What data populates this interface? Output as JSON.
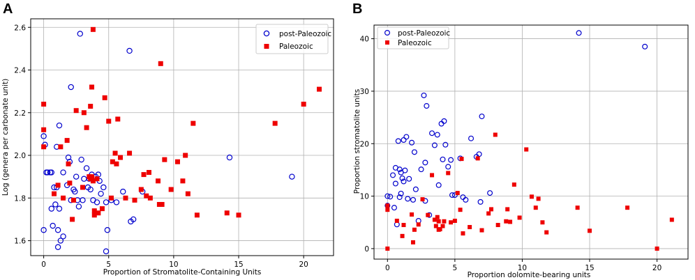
{
  "chart_data": [
    {
      "type": "scatter",
      "panel_label": "A",
      "title": "",
      "xlabel": "Proportion of Stromatolite-Containing Units",
      "ylabel": "Log (genera per carbonate unit)",
      "xlim": [
        -1,
        22.3
      ],
      "ylim": [
        1.53,
        2.64
      ],
      "xticks": [
        0,
        5,
        10,
        15,
        20
      ],
      "yticks": [
        1.6,
        1.8,
        2.0,
        2.2,
        2.4,
        2.6
      ],
      "xtick_labels": [
        "0",
        "5",
        "10",
        "15",
        "20"
      ],
      "ytick_labels": [
        "1.6",
        "1.8",
        "2.0",
        "2.2",
        "2.4",
        "2.6"
      ],
      "grid": true,
      "legend_position": "top-right",
      "series": [
        {
          "name": "post-Paleozoic",
          "marker": "open-circle",
          "color": "#0000cc",
          "points": [
            [
              0,
              1.65
            ],
            [
              0,
              2.09
            ],
            [
              0.1,
              2.05
            ],
            [
              0.2,
              1.92
            ],
            [
              0.3,
              1.92
            ],
            [
              0.5,
              1.92
            ],
            [
              0.6,
              1.92
            ],
            [
              0.6,
              1.75
            ],
            [
              0.7,
              1.67
            ],
            [
              0.8,
              1.85
            ],
            [
              0.9,
              1.77
            ],
            [
              1,
              2.04
            ],
            [
              1,
              1.85
            ],
            [
              1.1,
              1.65
            ],
            [
              1.1,
              1.57
            ],
            [
              1.2,
              2.14
            ],
            [
              1.2,
              1.75
            ],
            [
              1.3,
              1.6
            ],
            [
              1.5,
              1.92
            ],
            [
              1.5,
              1.62
            ],
            [
              1.8,
              1.86
            ],
            [
              1.9,
              1.99
            ],
            [
              2,
              1.97
            ],
            [
              2.1,
              1.79
            ],
            [
              2.1,
              2.32
            ],
            [
              2.3,
              1.84
            ],
            [
              2.4,
              1.83
            ],
            [
              2.5,
              1.9
            ],
            [
              2.6,
              1.79
            ],
            [
              2.7,
              1.76
            ],
            [
              2.8,
              2.57
            ],
            [
              2.9,
              1.98
            ],
            [
              3,
              1.79
            ],
            [
              3.1,
              1.89
            ],
            [
              3.3,
              1.94
            ],
            [
              3.4,
              1.85
            ],
            [
              3.5,
              1.89
            ],
            [
              3.6,
              1.84
            ],
            [
              3.7,
              1.91
            ],
            [
              3.8,
              1.79
            ],
            [
              4,
              1.9
            ],
            [
              4.1,
              1.78
            ],
            [
              4.2,
              1.91
            ],
            [
              4.3,
              1.88
            ],
            [
              4.4,
              1.82
            ],
            [
              4.6,
              1.85
            ],
            [
              4.8,
              1.78
            ],
            [
              4.8,
              1.55
            ],
            [
              4.9,
              1.65
            ],
            [
              5.2,
              1.79
            ],
            [
              5.6,
              1.78
            ],
            [
              6.1,
              1.83
            ],
            [
              6.6,
              2.49
            ],
            [
              6.7,
              1.69
            ],
            [
              6.9,
              1.7
            ],
            [
              7.6,
              1.83
            ],
            [
              14.3,
              1.99
            ],
            [
              19.1,
              1.9
            ]
          ]
        },
        {
          "name": "Paleozoic",
          "marker": "filled-square",
          "color": "#ee0000",
          "points": [
            [
              0,
              2.24
            ],
            [
              0,
              2.12
            ],
            [
              0,
              2.04
            ],
            [
              0.8,
              1.82
            ],
            [
              1.1,
              1.86
            ],
            [
              1.3,
              2.04
            ],
            [
              1.5,
              1.8
            ],
            [
              1.8,
              2.07
            ],
            [
              1.9,
              1.96
            ],
            [
              2,
              1.87
            ],
            [
              2.2,
              1.7
            ],
            [
              2.3,
              1.79
            ],
            [
              2.5,
              2.21
            ],
            [
              3,
              1.85
            ],
            [
              3.1,
              2.2
            ],
            [
              3.3,
              2.13
            ],
            [
              3.5,
              1.9
            ],
            [
              3.6,
              2.23
            ],
            [
              3.6,
              1.89
            ],
            [
              3.7,
              2.32
            ],
            [
              3.7,
              1.9
            ],
            [
              3.8,
              2.59
            ],
            [
              3.8,
              1.88
            ],
            [
              3.9,
              1.74
            ],
            [
              3.9,
              1.72
            ],
            [
              4.1,
              1.89
            ],
            [
              4.2,
              1.73
            ],
            [
              4.5,
              1.75
            ],
            [
              4.7,
              2.27
            ],
            [
              5,
              2.16
            ],
            [
              5.2,
              1.8
            ],
            [
              5.3,
              1.97
            ],
            [
              5.5,
              2.01
            ],
            [
              5.6,
              1.96
            ],
            [
              5.7,
              2.17
            ],
            [
              5.9,
              1.99
            ],
            [
              6.3,
              1.8
            ],
            [
              6.6,
              2.01
            ],
            [
              7,
              1.79
            ],
            [
              7.5,
              1.84
            ],
            [
              7.7,
              1.91
            ],
            [
              7.9,
              1.81
            ],
            [
              8.1,
              1.92
            ],
            [
              8.2,
              1.8
            ],
            [
              8.8,
              1.88
            ],
            [
              8.9,
              1.77
            ],
            [
              9,
              2.43
            ],
            [
              9.1,
              1.77
            ],
            [
              9.3,
              1.98
            ],
            [
              9.8,
              1.84
            ],
            [
              10.3,
              1.97
            ],
            [
              10.7,
              1.88
            ],
            [
              10.9,
              2
            ],
            [
              11.1,
              1.82
            ],
            [
              11.5,
              2.15
            ],
            [
              11.8,
              1.72
            ],
            [
              14.1,
              1.73
            ],
            [
              15,
              1.72
            ],
            [
              17.8,
              2.15
            ],
            [
              20,
              2.24
            ],
            [
              21.2,
              2.31
            ]
          ]
        }
      ]
    },
    {
      "type": "scatter",
      "panel_label": "B",
      "title": "",
      "xlabel": "Proportion dolomite-bearing units",
      "ylabel": "Proportion stromatolite units",
      "xlim": [
        -1,
        22.3
      ],
      "ylim": [
        -2,
        42.6
      ],
      "xticks": [
        0,
        5,
        10,
        15,
        20
      ],
      "yticks": [
        0,
        10,
        20,
        30,
        40
      ],
      "xtick_labels": [
        "0",
        "5",
        "10",
        "15",
        "20"
      ],
      "ytick_labels": [
        "0",
        "10",
        "20",
        "30",
        "40"
      ],
      "grid": true,
      "legend_position": "top-left",
      "series": [
        {
          "name": "post-Paleozoic",
          "marker": "open-circle",
          "color": "#0000cc",
          "points": [
            [
              0,
              10
            ],
            [
              0,
              8.2
            ],
            [
              0.2,
              9.9
            ],
            [
              0.4,
              14
            ],
            [
              0.5,
              7.8
            ],
            [
              0.6,
              12.4
            ],
            [
              0.6,
              15.4
            ],
            [
              0.7,
              4.6
            ],
            [
              0.8,
              20.5
            ],
            [
              0.9,
              15.1
            ],
            [
              0.9,
              9.8
            ],
            [
              1,
              14.5
            ],
            [
              1,
              10.5
            ],
            [
              1.1,
              13.4
            ],
            [
              1.2,
              20.7
            ],
            [
              1.2,
              12.8
            ],
            [
              1.3,
              14.9
            ],
            [
              1.4,
              21.3
            ],
            [
              1.5,
              9.5
            ],
            [
              1.6,
              13.3
            ],
            [
              1.8,
              20.2
            ],
            [
              1.9,
              9.3
            ],
            [
              2,
              18.4
            ],
            [
              2.1,
              11.3
            ],
            [
              2.3,
              5.3
            ],
            [
              2.5,
              15.1
            ],
            [
              2.7,
              29.2
            ],
            [
              2.8,
              16.4
            ],
            [
              2.8,
              9.1
            ],
            [
              2.9,
              27.2
            ],
            [
              3.1,
              6.4
            ],
            [
              3.3,
              22
            ],
            [
              3.5,
              19.7
            ],
            [
              3.7,
              21.7
            ],
            [
              3.8,
              12.1
            ],
            [
              4,
              23.8
            ],
            [
              4.1,
              17
            ],
            [
              4.2,
              24.3
            ],
            [
              4.3,
              19.8
            ],
            [
              4.5,
              15.6
            ],
            [
              4.7,
              16.9
            ],
            [
              4.8,
              10.2
            ],
            [
              5,
              10.2
            ],
            [
              5.4,
              17.2
            ],
            [
              5.6,
              9.8
            ],
            [
              5.8,
              9.3
            ],
            [
              6.2,
              21
            ],
            [
              6.6,
              17.5
            ],
            [
              6.8,
              18
            ],
            [
              7,
              25.2
            ],
            [
              6.9,
              8.9
            ],
            [
              7.6,
              10.6
            ],
            [
              14.2,
              41.1
            ],
            [
              19.1,
              38.5
            ]
          ]
        },
        {
          "name": "Paleozoic",
          "marker": "filled-square",
          "color": "#ee0000",
          "points": [
            [
              0,
              8.2
            ],
            [
              0,
              7.4
            ],
            [
              0,
              0
            ],
            [
              0.7,
              5.3
            ],
            [
              1.1,
              2.4
            ],
            [
              1.2,
              4.5
            ],
            [
              1.8,
              6.5
            ],
            [
              1.9,
              1.2
            ],
            [
              2,
              3.6
            ],
            [
              2.3,
              4.6
            ],
            [
              2.6,
              9.4
            ],
            [
              3,
              6.4
            ],
            [
              3.3,
              14
            ],
            [
              3.5,
              5.5
            ],
            [
              3.6,
              4.3
            ],
            [
              3.7,
              6
            ],
            [
              3.8,
              5.2
            ],
            [
              3.8,
              3.6
            ],
            [
              3.9,
              3.7
            ],
            [
              4.1,
              4.3
            ],
            [
              4.2,
              5.2
            ],
            [
              4.5,
              14.4
            ],
            [
              4.7,
              5
            ],
            [
              5,
              5.3
            ],
            [
              5.2,
              10.6
            ],
            [
              5.4,
              7.4
            ],
            [
              5.5,
              17.1
            ],
            [
              5.6,
              2.9
            ],
            [
              6.1,
              4.1
            ],
            [
              6.7,
              17.2
            ],
            [
              7,
              3.5
            ],
            [
              7.5,
              6.7
            ],
            [
              7.7,
              7.5
            ],
            [
              8,
              21.7
            ],
            [
              8.2,
              4.5
            ],
            [
              8.8,
              5.2
            ],
            [
              8.9,
              7.5
            ],
            [
              9.1,
              5.1
            ],
            [
              9.4,
              12.2
            ],
            [
              9.8,
              5.9
            ],
            [
              10.3,
              18.9
            ],
            [
              10.7,
              9.9
            ],
            [
              11,
              7.8
            ],
            [
              11.2,
              9.5
            ],
            [
              11.5,
              5
            ],
            [
              11.8,
              3.1
            ],
            [
              14.1,
              7.8
            ],
            [
              15,
              3.4
            ],
            [
              17.8,
              7.8
            ],
            [
              20,
              0
            ],
            [
              21.1,
              5.5
            ]
          ]
        }
      ]
    }
  ]
}
